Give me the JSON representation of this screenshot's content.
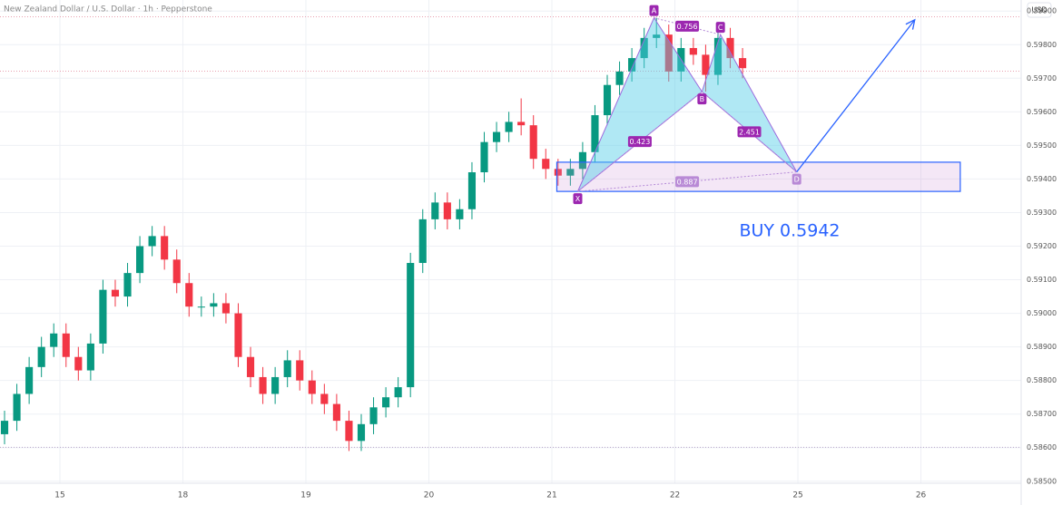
{
  "chart_data": {
    "type": "candlestick",
    "title": "New Zealand Dollar / U.S. Dollar · 1h · Pepperstone",
    "currency": "USD",
    "up_color": "#089981",
    "down_color": "#f23645",
    "grid": true,
    "xlim": [
      -0.487,
      7.815
    ],
    "ylim": [
      0.58494,
      0.59933
    ],
    "xticks": [
      {
        "value": 0,
        "label": "15"
      },
      {
        "value": 1,
        "label": "18"
      },
      {
        "value": 2,
        "label": "19"
      },
      {
        "value": 3,
        "label": "20"
      },
      {
        "value": 4,
        "label": "21"
      },
      {
        "value": 5,
        "label": "22"
      },
      {
        "value": 6,
        "label": "25"
      },
      {
        "value": 7,
        "label": "26"
      }
    ],
    "yticks": [
      {
        "value": 0.585,
        "label": "0.58500"
      },
      {
        "value": 0.586,
        "label": "0.58600"
      },
      {
        "value": 0.587,
        "label": "0.58700"
      },
      {
        "value": 0.588,
        "label": "0.58800"
      },
      {
        "value": 0.589,
        "label": "0.58900"
      },
      {
        "value": 0.59,
        "label": "0.59000"
      },
      {
        "value": 0.591,
        "label": "0.59100"
      },
      {
        "value": 0.592,
        "label": "0.59200"
      },
      {
        "value": 0.593,
        "label": "0.59300"
      },
      {
        "value": 0.594,
        "label": "0.59400"
      },
      {
        "value": 0.595,
        "label": "0.59500"
      },
      {
        "value": 0.596,
        "label": "0.59600"
      },
      {
        "value": 0.597,
        "label": "0.59700"
      },
      {
        "value": 0.598,
        "label": "0.59800"
      },
      {
        "value": 0.599,
        "label": "0.59900"
      }
    ],
    "x": [
      -0.45,
      -0.35,
      -0.25,
      -0.15,
      -0.05,
      0.05,
      0.15,
      0.25,
      0.35,
      0.45,
      0.55,
      0.65,
      0.75,
      0.85,
      0.95,
      1.05,
      1.15,
      1.25,
      1.35,
      1.45,
      1.55,
      1.65,
      1.75,
      1.85,
      1.95,
      2.05,
      2.15,
      2.25,
      2.35,
      2.45,
      2.55,
      2.65,
      2.75,
      2.85,
      2.95,
      3.05,
      3.15,
      3.25,
      3.35,
      3.45,
      3.55,
      3.65,
      3.75,
      3.85,
      3.95,
      4.05,
      4.15,
      4.25,
      4.35,
      4.45,
      4.55,
      4.65,
      4.75,
      4.85,
      4.95,
      5.05,
      5.15,
      5.25,
      5.35,
      5.45,
      5.55
    ],
    "open": [
      0.5864,
      0.5868,
      0.5876,
      0.5884,
      0.589,
      0.5894,
      0.5887,
      0.5883,
      0.5891,
      0.5907,
      0.5905,
      0.5912,
      0.592,
      0.5923,
      0.5916,
      0.5909,
      0.5902,
      0.5902,
      0.5903,
      0.59,
      0.5887,
      0.5881,
      0.5876,
      0.5881,
      0.5886,
      0.588,
      0.5876,
      0.5873,
      0.5868,
      0.5862,
      0.5867,
      0.5872,
      0.5875,
      0.5878,
      0.5915,
      0.5928,
      0.5933,
      0.5928,
      0.5931,
      0.5942,
      0.5951,
      0.5954,
      0.5957,
      0.5956,
      0.5946,
      0.5943,
      0.5941,
      0.5943,
      0.5948,
      0.5959,
      0.5968,
      0.5972,
      0.5976,
      0.5982,
      0.5983,
      0.5972,
      0.5979,
      0.5977,
      0.5971,
      0.5982,
      0.5976
    ],
    "high": [
      0.5871,
      0.5879,
      0.5887,
      0.5893,
      0.5897,
      0.5897,
      0.589,
      0.5894,
      0.591,
      0.591,
      0.5915,
      0.5923,
      0.5926,
      0.5926,
      0.5919,
      0.5912,
      0.5905,
      0.5906,
      0.5906,
      0.5903,
      0.589,
      0.5884,
      0.5884,
      0.5889,
      0.5889,
      0.5883,
      0.5879,
      0.5876,
      0.5871,
      0.587,
      0.5875,
      0.5878,
      0.5881,
      0.5918,
      0.5931,
      0.5936,
      0.5936,
      0.5934,
      0.5945,
      0.5954,
      0.5957,
      0.596,
      0.5964,
      0.5959,
      0.5949,
      0.5946,
      0.5946,
      0.5951,
      0.5962,
      0.5971,
      0.5975,
      0.5979,
      0.5985,
      0.5988,
      0.5986,
      0.5982,
      0.5982,
      0.598,
      0.5985,
      0.5985,
      0.5979
    ],
    "low": [
      0.5861,
      0.5865,
      0.5873,
      0.5881,
      0.5887,
      0.5884,
      0.588,
      0.588,
      0.5888,
      0.5902,
      0.5902,
      0.5909,
      0.5917,
      0.5913,
      0.5906,
      0.5899,
      0.5899,
      0.5899,
      0.5897,
      0.5884,
      0.5878,
      0.5873,
      0.5873,
      0.5878,
      0.5877,
      0.5873,
      0.587,
      0.5865,
      0.5859,
      0.5859,
      0.5864,
      0.5869,
      0.5872,
      0.5875,
      0.5912,
      0.5925,
      0.5925,
      0.5925,
      0.5928,
      0.5939,
      0.5948,
      0.5951,
      0.5953,
      0.5943,
      0.594,
      0.5938,
      0.5938,
      0.594,
      0.5945,
      0.5956,
      0.5965,
      0.5969,
      0.5973,
      0.5979,
      0.5969,
      0.5969,
      0.5974,
      0.5966,
      0.5968,
      0.5973,
      0.597
    ],
    "close": [
      0.5868,
      0.5876,
      0.5884,
      0.589,
      0.5894,
      0.5887,
      0.5883,
      0.5891,
      0.5907,
      0.5905,
      0.5912,
      0.592,
      0.5923,
      0.5916,
      0.5909,
      0.5902,
      0.5902,
      0.5903,
      0.59,
      0.5887,
      0.5881,
      0.5876,
      0.5881,
      0.5886,
      0.588,
      0.5876,
      0.5873,
      0.5868,
      0.5862,
      0.5867,
      0.5872,
      0.5875,
      0.5878,
      0.5915,
      0.5928,
      0.5933,
      0.5928,
      0.5931,
      0.5942,
      0.5951,
      0.5954,
      0.5957,
      0.5956,
      0.5946,
      0.5943,
      0.5941,
      0.5943,
      0.5948,
      0.5959,
      0.5968,
      0.5972,
      0.5976,
      0.5982,
      0.5983,
      0.5972,
      0.5979,
      0.5977,
      0.5971,
      0.5982,
      0.5976,
      0.5973
    ],
    "hlines": [
      0.59883,
      0.59721,
      0.58601
    ],
    "pattern": {
      "points": [
        {
          "label": "X",
          "x": 4.21,
          "y": 0.59363
        },
        {
          "label": "A",
          "x": 4.83,
          "y": 0.5988
        },
        {
          "label": "B",
          "x": 5.22,
          "y": 0.5966
        },
        {
          "label": "C",
          "x": 5.37,
          "y": 0.5983
        },
        {
          "label": "D",
          "x": 5.99,
          "y": 0.59421
        }
      ],
      "ratios": [
        0.423,
        0.756,
        2.451,
        0.887
      ]
    },
    "zone": {
      "x": [
        4.04,
        7.32
      ],
      "y": [
        0.59363,
        0.5945
      ]
    },
    "projection": {
      "x": [
        5.99,
        6.95
      ],
      "y": [
        0.59421,
        0.59874
      ]
    },
    "annotation": "BUY 0.5942"
  }
}
